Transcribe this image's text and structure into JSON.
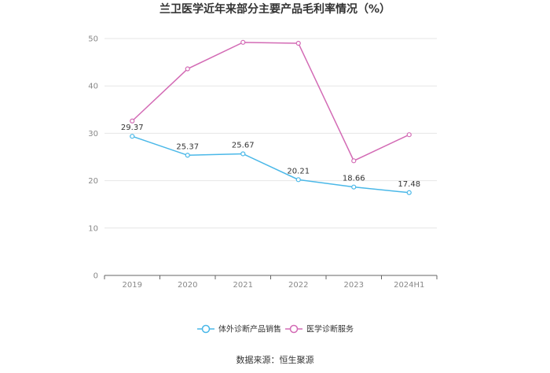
{
  "chart_data": {
    "type": "line",
    "title": "兰卫医学近年来部分主要产品毛利率情况（%）",
    "categories": [
      "2019",
      "2020",
      "2021",
      "2022",
      "2023",
      "2024H1"
    ],
    "ylim": [
      0,
      50
    ],
    "yticks": [
      0,
      10,
      20,
      30,
      40,
      50
    ],
    "grid": true,
    "legend_position": "bottom",
    "series": [
      {
        "name": "体外诊断产品销售",
        "color": "#4ab8e8",
        "values": [
          29.37,
          25.37,
          25.67,
          20.21,
          18.66,
          17.48
        ],
        "labels": [
          "29.37",
          "25.37",
          "25.67",
          "20.21",
          "18.66",
          "17.48"
        ]
      },
      {
        "name": "医学诊断服务",
        "color": "#d36bb5",
        "values": [
          32.6,
          43.6,
          49.2,
          49.0,
          24.2,
          29.7
        ]
      }
    ],
    "source": "数据来源：恒生聚源"
  }
}
